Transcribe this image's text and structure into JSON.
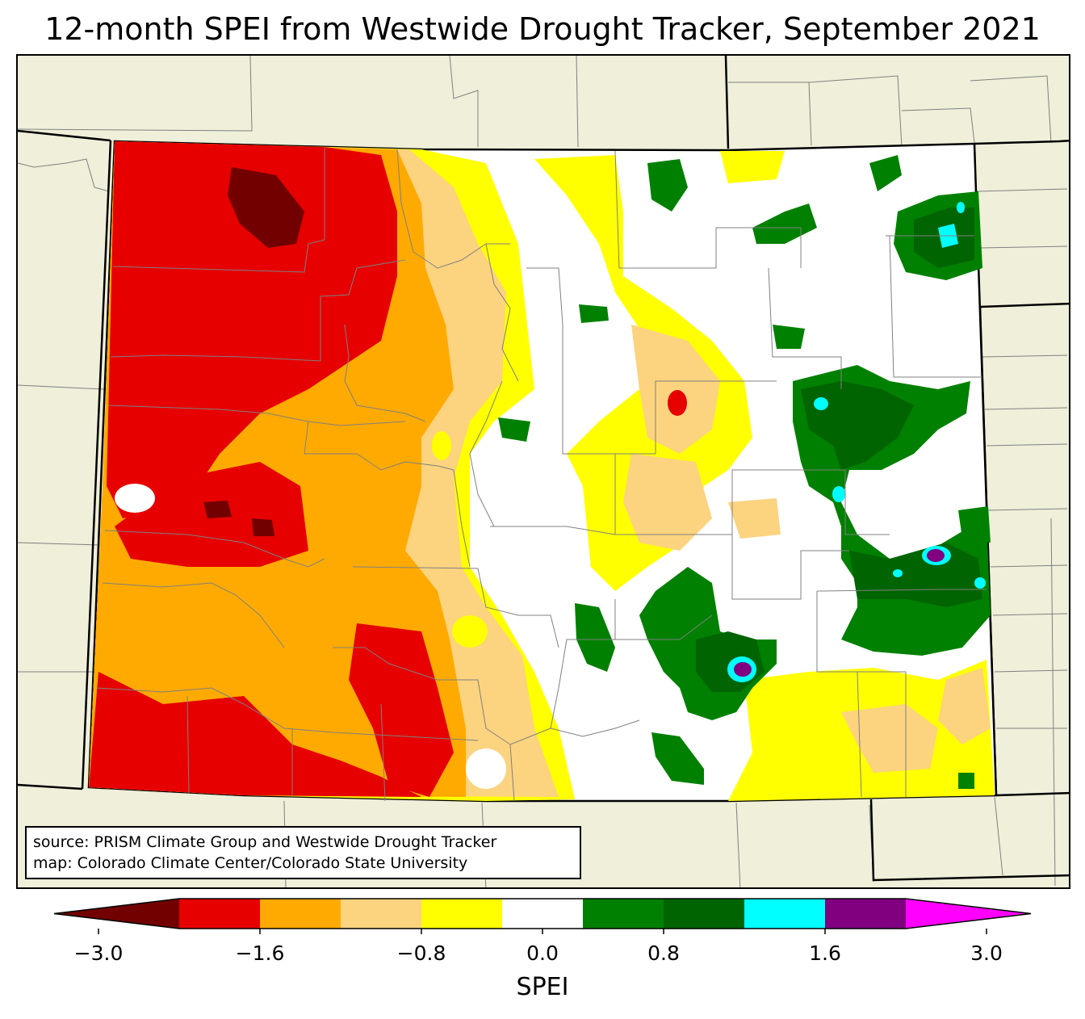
{
  "title": "12-month SPEI from Westwide Drought Tracker, September 2021",
  "source": {
    "line1": "source: PRISM Climate Group and Westwide Drought Tracker",
    "line2": "map: Colorado Climate Center/Colorado State University"
  },
  "colorbar": {
    "label": "SPEI",
    "range": [
      -3.0,
      3.0
    ],
    "extend": "both",
    "bins": [
      {
        "from": -3.0,
        "to": -2.4,
        "color": "#730000"
      },
      {
        "from": -2.4,
        "to": -1.6,
        "color": "#e60000"
      },
      {
        "from": -1.6,
        "to": -1.2,
        "color": "#ffaa00"
      },
      {
        "from": -1.2,
        "to": -0.8,
        "color": "#fcd37f"
      },
      {
        "from": -0.8,
        "to": -0.4,
        "color": "#ffff00"
      },
      {
        "from": -0.4,
        "to": 0.4,
        "color": "#ffffff"
      },
      {
        "from": 0.4,
        "to": 0.8,
        "color": "#008000"
      },
      {
        "from": 0.8,
        "to": 1.2,
        "color": "#006400"
      },
      {
        "from": 1.2,
        "to": 1.6,
        "color": "#00ffff"
      },
      {
        "from": 1.6,
        "to": 2.4,
        "color": "#800080"
      },
      {
        "from": 2.4,
        "to": 3.0,
        "color": "#ff00ff"
      }
    ],
    "ticks": [
      {
        "value": -3.0,
        "label": "−3.0"
      },
      {
        "value": -1.6,
        "label": "−1.6"
      },
      {
        "value": -0.8,
        "label": "−0.8"
      },
      {
        "value": 0.0,
        "label": "0.0"
      },
      {
        "value": 0.8,
        "label": "0.8"
      },
      {
        "value": 1.6,
        "label": "1.6"
      },
      {
        "value": 3.0,
        "label": "3.0"
      }
    ]
  },
  "colors": {
    "land": "#efefda",
    "border": "#000000",
    "county": "#808080"
  }
}
